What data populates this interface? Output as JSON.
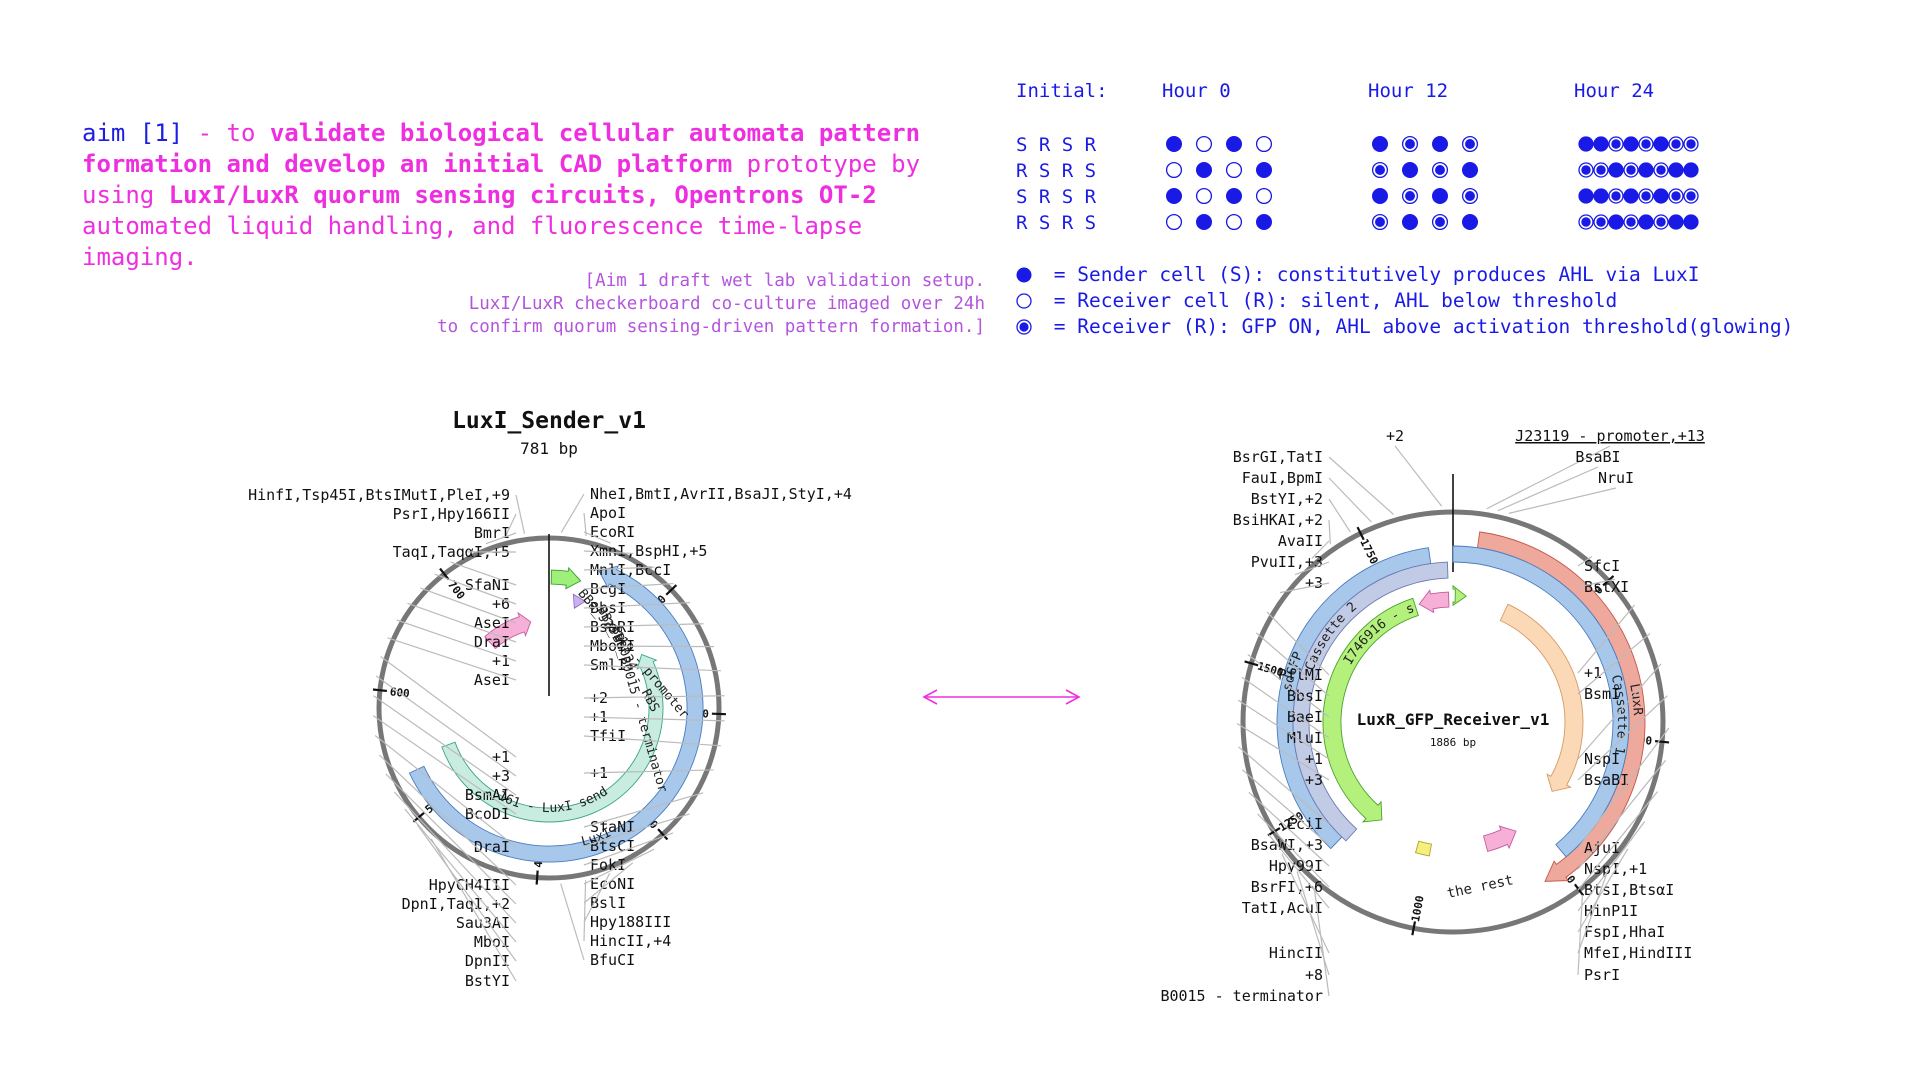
{
  "aim": {
    "prefix": "aim [1]",
    "dash": " - to ",
    "bold1": "validate biological cellular automata pattern formation and develop an initial CAD platform",
    "text2": " prototype by using ",
    "bold2": "LuxI/LuxR quorum sensing circuits, Opentrons OT-2",
    "text3": " automated liquid handling, and fluorescence time-lapse imaging."
  },
  "caption": {
    "line1": "[Aim 1 draft wet lab validation setup.",
    "line2": "LuxI/LuxR checkerboard co-culture imaged over 24h",
    "line3": "to confirm quorum sensing-driven pattern formation.]"
  },
  "grid": {
    "headers": [
      "Initial:",
      "Hour 0",
      "Hour 12",
      "Hour 24"
    ],
    "initial_rows": [
      "S R S R",
      "R S R S",
      "S R S R",
      "R S R S"
    ],
    "hour0": [
      [
        "S",
        "R",
        "S",
        "R"
      ],
      [
        "R",
        "S",
        "R",
        "S"
      ],
      [
        "S",
        "R",
        "S",
        "R"
      ],
      [
        "R",
        "S",
        "R",
        "S"
      ]
    ],
    "hour12": [
      [
        "S",
        "G",
        "S",
        "G"
      ],
      [
        "G",
        "S",
        "G",
        "S"
      ],
      [
        "S",
        "G",
        "S",
        "G"
      ],
      [
        "G",
        "S",
        "G",
        "S"
      ]
    ],
    "hour24": [
      [
        "S",
        "S",
        "G",
        "S",
        "G",
        "S",
        "G",
        "G"
      ],
      [
        "G",
        "G",
        "S",
        "G",
        "S",
        "G",
        "S",
        "S"
      ],
      [
        "S",
        "S",
        "G",
        "S",
        "G",
        "S",
        "G",
        "G"
      ],
      [
        "G",
        "G",
        "S",
        "G",
        "S",
        "G",
        "S",
        "S"
      ]
    ]
  },
  "legend": {
    "sender": " = Sender cell (S): constitutively produces AHL via LuxI",
    "receiver": " = Receiver cell (R): silent, AHL below threshold",
    "glowing": " = Receiver (R): GFP ON, AHL above activation threshold(glowing)"
  },
  "colors": {
    "magenta": "#ee2fe0",
    "blue": "#1a1ae6",
    "caption": "#b455dd",
    "backbone": "#777777",
    "luxI": "#a7c8ea",
    "sender_feature": "#c8ece0",
    "promoter": "#9ef07a",
    "rbs": "#c9b0ef",
    "terminator": "#f6b0d8",
    "luxR": "#eea89c",
    "cassette": "#c2cbe6",
    "cassette_feature": "#fcd9b6",
    "sfgfp": "#b4f07c",
    "yellow": "#f6ef7e"
  },
  "arrow_icon": "double-headed-arrow",
  "plasmid1": {
    "name": "LuxI_Sender_v1",
    "size": "781 bp",
    "ticks": [
      "100",
      "200",
      "300",
      "400",
      "500",
      "600",
      "700"
    ],
    "features": {
      "luxI": "LuxI",
      "promoter": "BBa_J23119 - promoter",
      "rbs": "BBa_B0034 - RBS",
      "terminator": "BBa_B0015 - terminator",
      "sender": "C0161 - LuxI sender"
    },
    "sites_left": [
      "HinfI,Tsp45I,BtsIMutI,PleI,+9",
      "PsrI,Hpy166II",
      "BmrI",
      "TaqI,TaqαI,+5",
      "SfaNI",
      "+6",
      "AseI",
      "DraI",
      "+1",
      "AseI",
      "+1",
      "+3",
      "BsmAI",
      "BcoDI",
      "DraI",
      "HpyCH4III",
      "DpnI,TaqI,+2",
      "Sau3AI",
      "MboI",
      "DpnII",
      "BstYI"
    ],
    "sites_right": [
      "NheI,BmtI,AvrII,BsaJI,StyI,+4",
      "ApoI",
      "EcoRI",
      "XmnI,BspHI,+5",
      "MnlI,BccI",
      "BcgI",
      "BbsI",
      "BseRI",
      "MboII",
      "SmlI",
      "+2",
      "+1",
      "TfiI",
      "+1",
      "SfaNI",
      "BtsCI",
      "FokI",
      "EcoNI",
      "BslI",
      "Hpy188III",
      "HincII,+4",
      "BfuCI"
    ]
  },
  "plasmid2": {
    "name": "LuxR_GFP_Receiver_v1",
    "size": "1886 bp",
    "ticks": [
      "250",
      "500",
      "750",
      "1000",
      "1250",
      "1500",
      "1750"
    ],
    "features": {
      "luxR": "LuxR",
      "cassette1": "Cassette 1",
      "cassette2": "Cassette 2",
      "sdgfp": "sdGFP",
      "sfgfp": "BBa_I746916 - sfGFP",
      "rest": "the rest"
    },
    "sites_top": [
      "+2",
      "J23119 - promoter,+13",
      "BsaBI",
      "NruI"
    ],
    "sites_left": [
      "BsrGI,TatI",
      "FauI,BpmI",
      "BstYI,+2",
      "BsiHKAI,+2",
      "AvaII",
      "PvuII,+3",
      "+3",
      "PflMI",
      "BbsI",
      "BaeI",
      "MluI",
      "+1",
      "+3",
      "EciI",
      "BsaWI,+3",
      "Hpy99I",
      "BsrFI,+6",
      "TatI,AcuI",
      "HincII",
      "+8",
      "B0015 - terminator"
    ],
    "sites_right": [
      "SfcI",
      "BstXI",
      "+1",
      "BsmI",
      "NspI",
      "BsaBI",
      "AjuI",
      "NspI,+1",
      "BtsI,BtsαI",
      "HinP1I",
      "FspI,HhaI",
      "MfeI,HindIII",
      "PsrI"
    ]
  }
}
